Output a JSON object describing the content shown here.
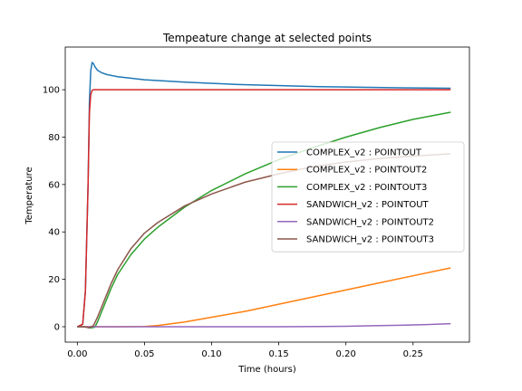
{
  "chart_data": {
    "type": "line",
    "title": "Tempeature change at selected points",
    "xlabel": "Time (hours)",
    "ylabel": "Temperature",
    "xlim": [
      -0.009,
      0.292
    ],
    "ylim": [
      -6.5,
      118
    ],
    "xticks": [
      0.0,
      0.05,
      0.1,
      0.15,
      0.2,
      0.25
    ],
    "xtick_labels": [
      "0.00",
      "0.05",
      "0.10",
      "0.15",
      "0.20",
      "0.25"
    ],
    "yticks": [
      0,
      20,
      40,
      60,
      80,
      100
    ],
    "ytick_labels": [
      "0",
      "20",
      "40",
      "60",
      "80",
      "100"
    ],
    "grid": false,
    "legend_position": "center-right",
    "series": [
      {
        "name": "COMPLEX_v2 : POINTOUT",
        "color": "#1f77b4",
        "x": [
          0,
          0.004,
          0.006,
          0.008,
          0.009,
          0.01,
          0.011,
          0.012,
          0.013,
          0.015,
          0.018,
          0.022,
          0.03,
          0.05,
          0.08,
          0.12,
          0.18,
          0.24,
          0.278
        ],
        "y": [
          0,
          1,
          15,
          60,
          95,
          108,
          111.5,
          111,
          109.8,
          108.2,
          107.2,
          106.4,
          105.5,
          104.2,
          103.2,
          102.2,
          101.3,
          100.8,
          100.6
        ]
      },
      {
        "name": "COMPLEX_v2 : POINTOUT2",
        "color": "#ff7f0e",
        "x": [
          0,
          0.03,
          0.05,
          0.06,
          0.08,
          0.1,
          0.125,
          0.15,
          0.175,
          0.2,
          0.225,
          0.25,
          0.278
        ],
        "y": [
          0,
          0,
          0.1,
          0.5,
          2.0,
          4.0,
          6.5,
          9.5,
          12.5,
          15.5,
          18.5,
          21.5,
          24.8
        ]
      },
      {
        "name": "COMPLEX_v2 : POINTOUT3",
        "color": "#2ca02c",
        "x": [
          0,
          0.005,
          0.01,
          0.013,
          0.015,
          0.02,
          0.025,
          0.03,
          0.04,
          0.05,
          0.06,
          0.08,
          0.1,
          0.125,
          0.15,
          0.175,
          0.2,
          0.225,
          0.25,
          0.278
        ],
        "y": [
          0,
          0,
          -0.5,
          -0.2,
          2,
          9,
          16,
          22,
          30.5,
          37,
          42,
          50.5,
          57.5,
          64.5,
          70.5,
          75.5,
          80,
          84,
          87.5,
          90.5
        ]
      },
      {
        "name": "SANDWICH_v2 : POINTOUT",
        "color": "#d62728",
        "x": [
          0,
          0.004,
          0.006,
          0.008,
          0.009,
          0.01,
          0.011,
          0.012,
          0.015,
          0.05,
          0.1,
          0.15,
          0.2,
          0.25,
          0.278
        ],
        "y": [
          0,
          1,
          15,
          60,
          90,
          98,
          99.7,
          100,
          100,
          100,
          100,
          100,
          100,
          100,
          100
        ]
      },
      {
        "name": "SANDWICH_v2 : POINTOUT2",
        "color": "#9467bd",
        "x": [
          0,
          0.05,
          0.1,
          0.15,
          0.18,
          0.2,
          0.22,
          0.24,
          0.26,
          0.278
        ],
        "y": [
          0,
          0,
          0,
          0,
          0.1,
          0.2,
          0.4,
          0.6,
          0.9,
          1.3
        ]
      },
      {
        "name": "SANDWICH_v2 : POINTOUT3",
        "color": "#8c564b",
        "x": [
          0,
          0.005,
          0.009,
          0.012,
          0.015,
          0.02,
          0.025,
          0.03,
          0.04,
          0.05,
          0.06,
          0.08,
          0.1,
          0.125,
          0.15,
          0.175,
          0.2,
          0.225,
          0.25,
          0.278
        ],
        "y": [
          0,
          0,
          -0.5,
          0.5,
          4,
          11,
          18,
          24,
          33,
          39.5,
          44,
          51,
          56,
          61,
          64.5,
          67.5,
          69.5,
          71,
          72,
          73
        ]
      }
    ]
  }
}
